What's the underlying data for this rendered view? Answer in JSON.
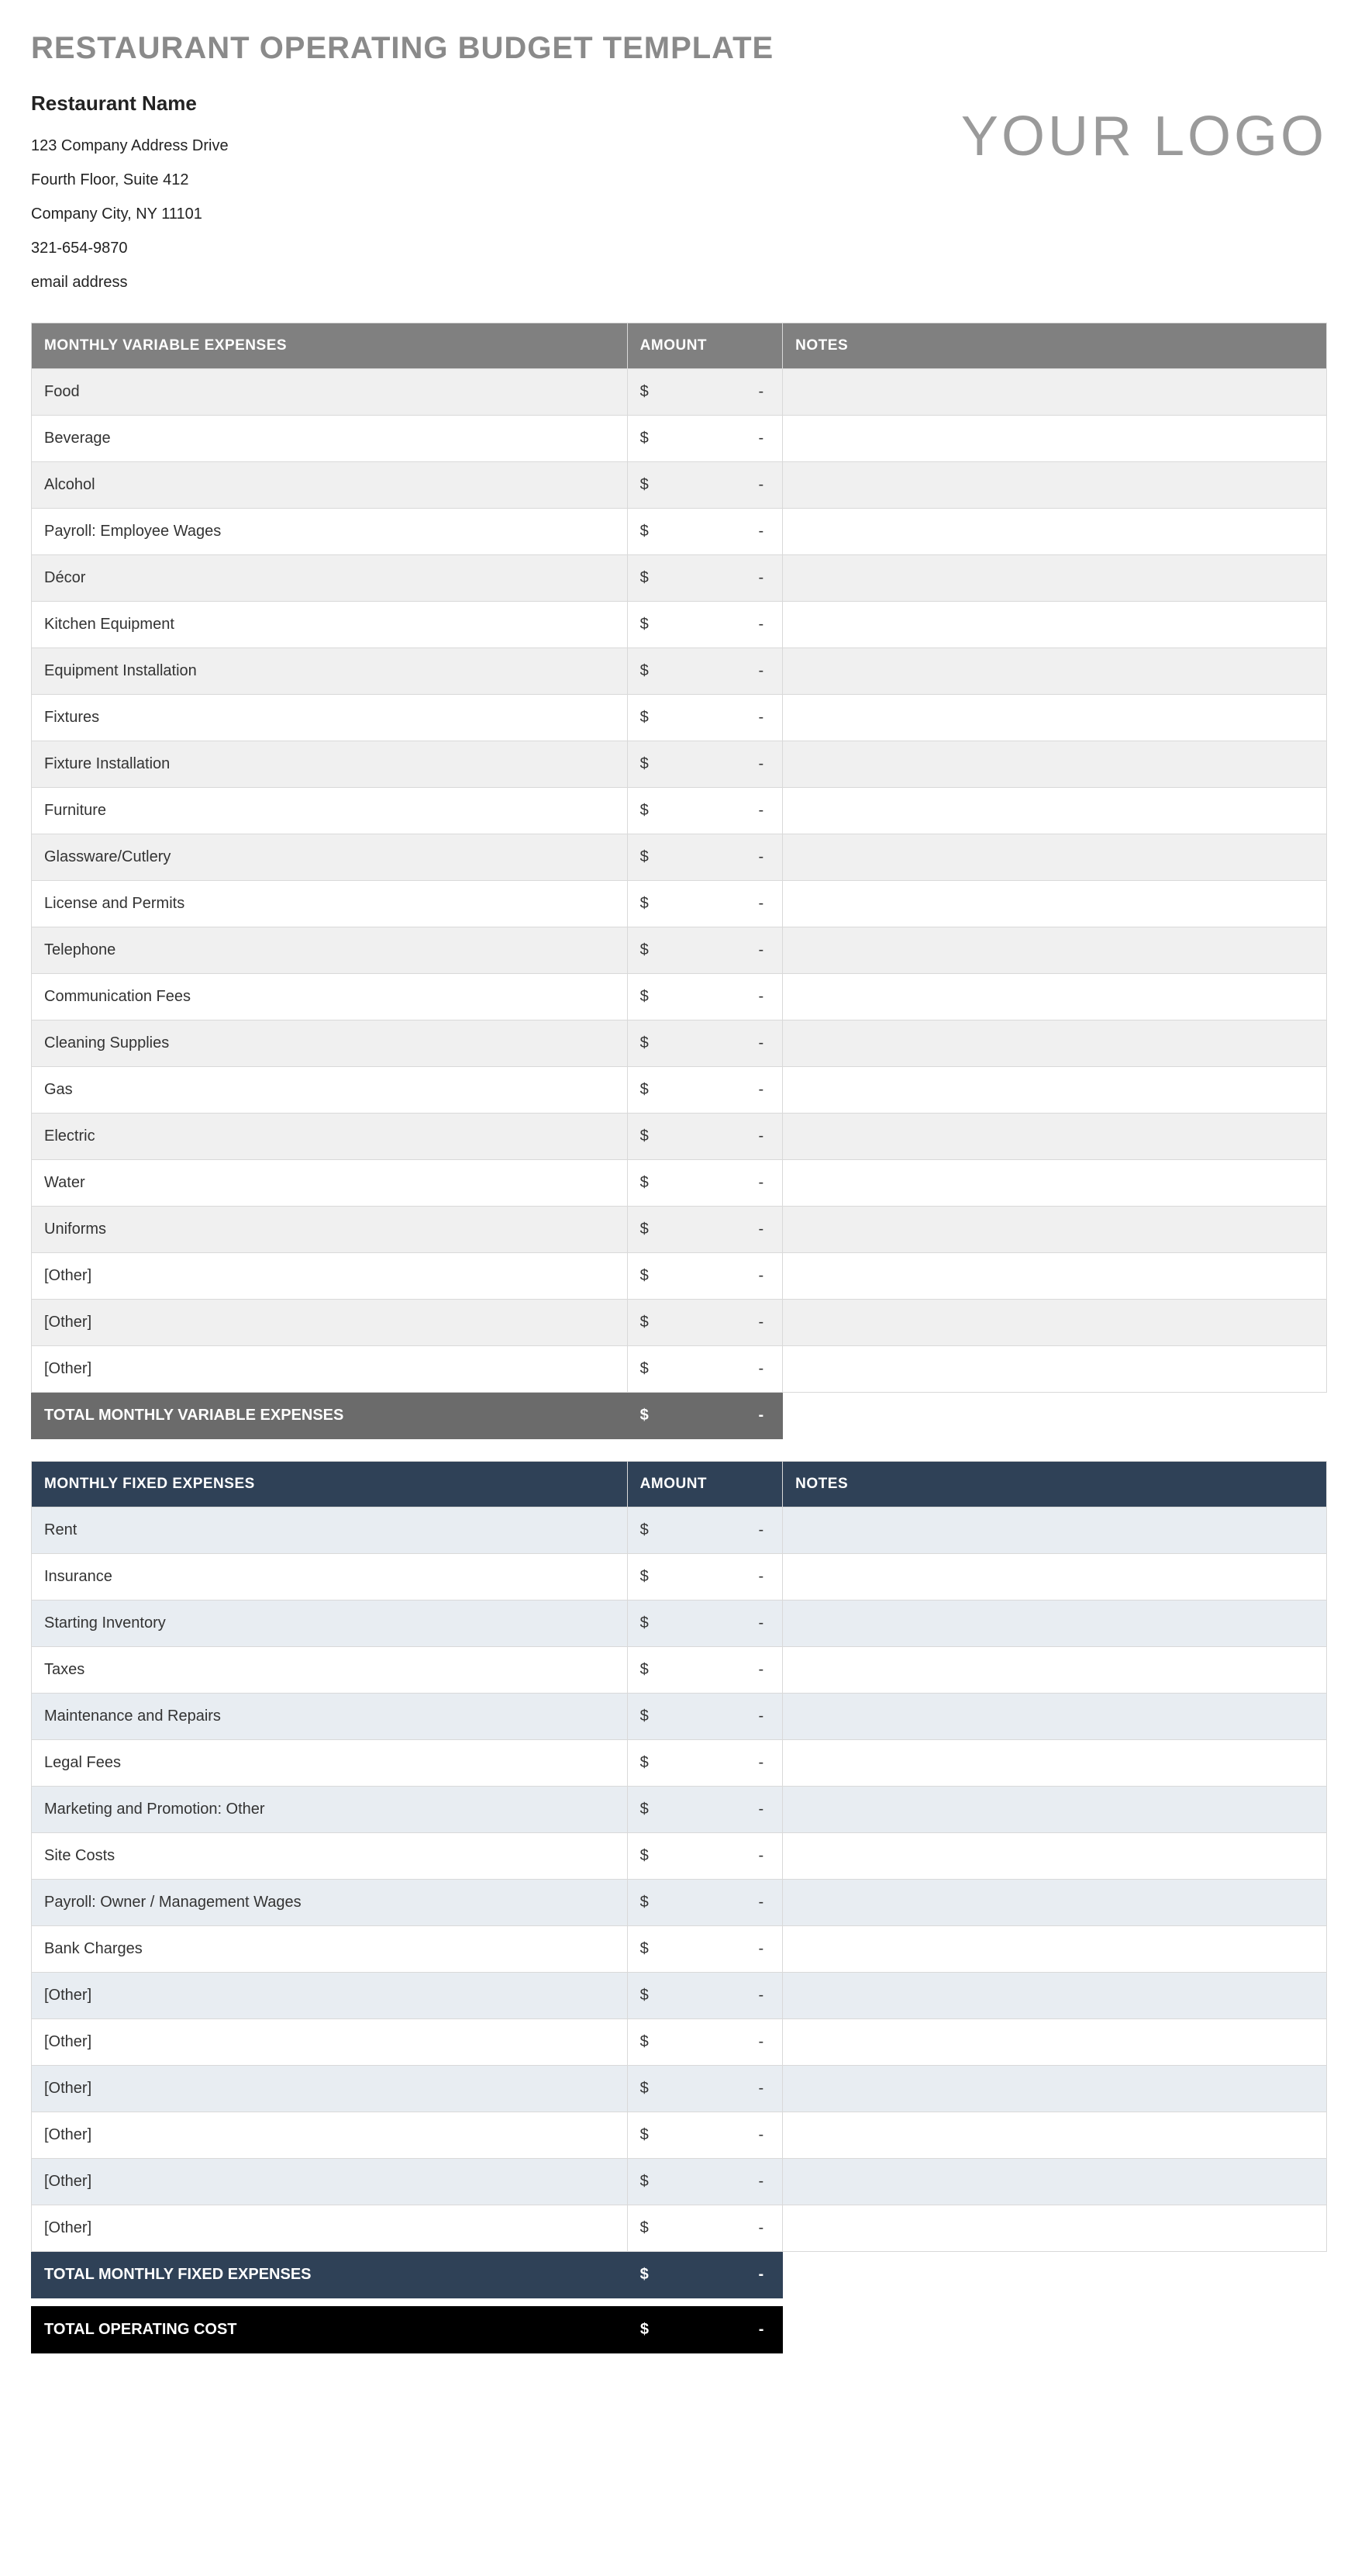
{
  "title": "RESTAURANT OPERATING BUDGET TEMPLATE",
  "logo_text": "YOUR LOGO",
  "company": {
    "name": "Restaurant Name",
    "address1": "123 Company Address Drive",
    "address2": "Fourth Floor, Suite 412",
    "city_line": "Company City, NY  11101",
    "phone": "321-654-9870",
    "email": "email address"
  },
  "colors": {
    "var_header": "#808080",
    "var_total": "#6b6b6b",
    "var_zebra": "#f0f0f0",
    "fixed_header": "#2f4157",
    "fixed_total": "#2f4157",
    "fixed_zebra": "#e8edf2",
    "op_total": "#000000",
    "border": "#d9d9d9",
    "title_color": "#8a8a8a"
  },
  "columns": {
    "item": "",
    "amount": "AMOUNT",
    "notes": "NOTES"
  },
  "currency": "$",
  "empty_value": "-",
  "variable": {
    "header": "MONTHLY VARIABLE EXPENSES",
    "rows": [
      {
        "label": "Food",
        "amount": "-",
        "notes": ""
      },
      {
        "label": "Beverage",
        "amount": "-",
        "notes": ""
      },
      {
        "label": "Alcohol",
        "amount": "-",
        "notes": ""
      },
      {
        "label": "Payroll: Employee Wages",
        "amount": "-",
        "notes": ""
      },
      {
        "label": "Décor",
        "amount": "-",
        "notes": ""
      },
      {
        "label": "Kitchen Equipment",
        "amount": "-",
        "notes": ""
      },
      {
        "label": "Equipment Installation",
        "amount": "-",
        "notes": ""
      },
      {
        "label": "Fixtures",
        "amount": "-",
        "notes": ""
      },
      {
        "label": "Fixture Installation",
        "amount": "-",
        "notes": ""
      },
      {
        "label": "Furniture",
        "amount": "-",
        "notes": ""
      },
      {
        "label": "Glassware/Cutlery",
        "amount": "-",
        "notes": ""
      },
      {
        "label": "License and Permits",
        "amount": "-",
        "notes": ""
      },
      {
        "label": "Telephone",
        "amount": "-",
        "notes": ""
      },
      {
        "label": "Communication Fees",
        "amount": "-",
        "notes": ""
      },
      {
        "label": "Cleaning Supplies",
        "amount": "-",
        "notes": ""
      },
      {
        "label": "Gas",
        "amount": "-",
        "notes": ""
      },
      {
        "label": "Electric",
        "amount": "-",
        "notes": ""
      },
      {
        "label": "Water",
        "amount": "-",
        "notes": ""
      },
      {
        "label": "Uniforms",
        "amount": "-",
        "notes": ""
      },
      {
        "label": "[Other]",
        "amount": "-",
        "notes": ""
      },
      {
        "label": "[Other]",
        "amount": "-",
        "notes": ""
      },
      {
        "label": "[Other]",
        "amount": "-",
        "notes": ""
      }
    ],
    "total_label": "TOTAL MONTHLY VARIABLE EXPENSES",
    "total_amount": "-"
  },
  "fixed": {
    "header": "MONTHLY FIXED EXPENSES",
    "rows": [
      {
        "label": "Rent",
        "amount": "-",
        "notes": ""
      },
      {
        "label": "Insurance",
        "amount": "-",
        "notes": ""
      },
      {
        "label": "Starting Inventory",
        "amount": "-",
        "notes": ""
      },
      {
        "label": "Taxes",
        "amount": "-",
        "notes": ""
      },
      {
        "label": "Maintenance and Repairs",
        "amount": "-",
        "notes": ""
      },
      {
        "label": "Legal Fees",
        "amount": "-",
        "notes": ""
      },
      {
        "label": "Marketing and Promotion: Other",
        "amount": "-",
        "notes": ""
      },
      {
        "label": "Site Costs",
        "amount": "-",
        "notes": ""
      },
      {
        "label": "Payroll: Owner / Management Wages",
        "amount": "-",
        "notes": ""
      },
      {
        "label": "Bank Charges",
        "amount": "-",
        "notes": ""
      },
      {
        "label": "[Other]",
        "amount": "-",
        "notes": ""
      },
      {
        "label": "[Other]",
        "amount": "-",
        "notes": ""
      },
      {
        "label": "[Other]",
        "amount": "-",
        "notes": ""
      },
      {
        "label": "[Other]",
        "amount": "-",
        "notes": ""
      },
      {
        "label": "[Other]",
        "amount": "-",
        "notes": ""
      },
      {
        "label": "[Other]",
        "amount": "-",
        "notes": ""
      }
    ],
    "total_label": "TOTAL MONTHLY FIXED EXPENSES",
    "total_amount": "-"
  },
  "operating": {
    "total_label": "TOTAL OPERATING COST",
    "total_amount": "-"
  }
}
